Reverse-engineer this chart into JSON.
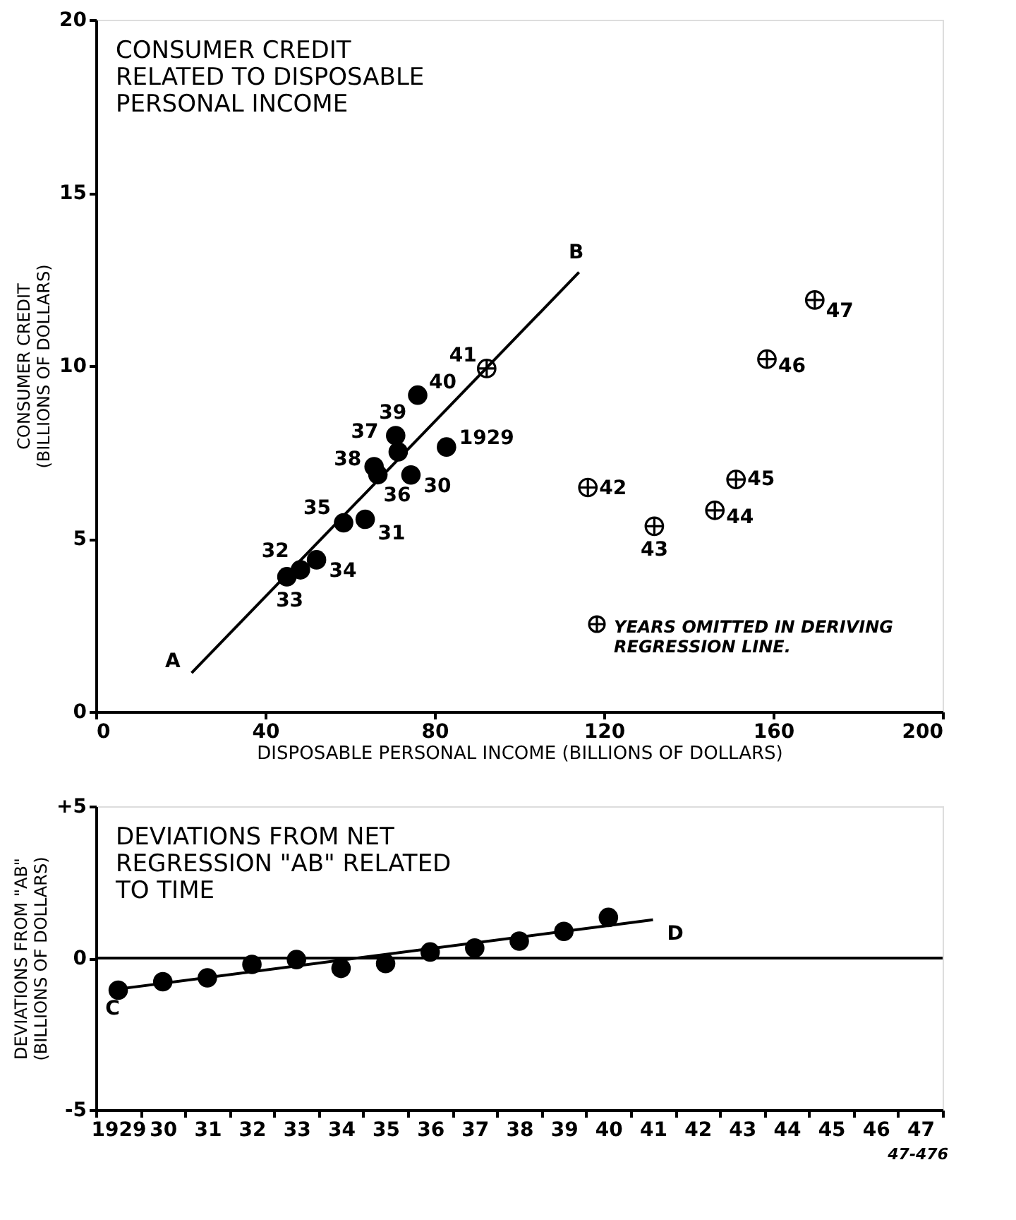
{
  "chart_data": [
    {
      "type": "scatter",
      "title": "CONSUMER CREDIT\nRELATED TO DISPOSABLE\nPERSONAL INCOME",
      "xlabel": "DISPOSABLE PERSONAL INCOME (BILLIONS OF DOLLARS)",
      "ylabel": "CONSUMER CREDIT (BILLIONS OF DOLLARS)",
      "xlim": [
        0,
        200
      ],
      "xticks": [
        0,
        40,
        80,
        120,
        160,
        200
      ],
      "ylim": [
        0,
        20
      ],
      "yticks": [
        0,
        5,
        10,
        15,
        20
      ],
      "grid": false,
      "legend": "bottom right",
      "series": [
        {
          "marker": "circle",
          "color": "#000000",
          "x": [
            82.8,
            74.4,
            63.6,
            48.3,
            45.1,
            52.1,
            58.5,
            66.6,
            71.4,
            65.7,
            70.8,
            76.0
          ],
          "values": [
            7.65,
            6.84,
            5.56,
            4.1,
            3.9,
            4.39,
            5.46,
            6.85,
            7.51,
            7.08,
            7.98,
            9.15
          ]
        },
        {
          "name": "YEARS OMITTED IN DERIVING REGRESSION LINE.",
          "marker": "cross",
          "color": "#000000",
          "x": [
            92.3,
            116.2,
            131.9,
            146.2,
            151.2,
            158.5,
            169.8
          ],
          "values": [
            9.92,
            6.48,
            5.36,
            5.82,
            6.71,
            10.19,
            11.9
          ]
        },
        {
          "type": "line",
          "color": "#000000",
          "x": [
            22.6,
            114.1
          ],
          "values": [
            1.12,
            12.7
          ]
        }
      ],
      "annotations": [
        {
          "text": "1929",
          "x": 82.8,
          "y": 7.65
        },
        {
          "text": "30",
          "x": 74.4,
          "y": 6.84
        },
        {
          "text": "31",
          "x": 63.6,
          "y": 5.56
        },
        {
          "text": "32",
          "x": 48.3,
          "y": 4.1
        },
        {
          "text": "33",
          "x": 45.1,
          "y": 3.9
        },
        {
          "text": "34",
          "x": 52.1,
          "y": 4.39
        },
        {
          "text": "35",
          "x": 58.5,
          "y": 5.46
        },
        {
          "text": "36",
          "x": 66.6,
          "y": 6.85
        },
        {
          "text": "37",
          "x": 71.4,
          "y": 7.51
        },
        {
          "text": "38",
          "x": 65.7,
          "y": 7.08
        },
        {
          "text": "39",
          "x": 70.8,
          "y": 7.98
        },
        {
          "text": "40",
          "x": 76.0,
          "y": 9.15
        },
        {
          "text": "41",
          "x": 92.3,
          "y": 9.92
        },
        {
          "text": "42",
          "x": 116.2,
          "y": 6.48
        },
        {
          "text": "43",
          "x": 131.9,
          "y": 5.36
        },
        {
          "text": "44",
          "x": 146.2,
          "y": 5.82
        },
        {
          "text": "45",
          "x": 151.2,
          "y": 6.71
        },
        {
          "text": "46",
          "x": 158.5,
          "y": 10.19
        },
        {
          "text": "47",
          "x": 169.8,
          "y": 11.9
        },
        {
          "text": "A",
          "x": 22.6,
          "y": 1.12
        },
        {
          "text": "B",
          "x": 114.1,
          "y": 12.7
        }
      ]
    },
    {
      "type": "scatter",
      "title": "DEVIATIONS FROM NET\nREGRESSION \"AB\" RELATED\nTO TIME",
      "ylabel": "DEVIATIONS FROM \"AB\" (BILLIONS OF DOLLARS)",
      "categories": [
        "1929",
        "30",
        "31",
        "32",
        "33",
        "34",
        "35",
        "36",
        "37",
        "38",
        "39",
        "40",
        "41",
        "42",
        "43",
        "44",
        "45",
        "46",
        "47"
      ],
      "ylim": [
        -5,
        5
      ],
      "yticks": [
        {
          "value": 5,
          "label": "+5"
        },
        0,
        -5
      ],
      "grid": false,
      "ref_lines": [
        {
          "axis": "y",
          "value": 0
        }
      ],
      "series": [
        {
          "marker": "circle",
          "color": "#000000",
          "values": [
            -1.06,
            -0.78,
            -0.65,
            -0.21,
            -0.05,
            -0.34,
            -0.18,
            0.2,
            0.33,
            0.56,
            0.88,
            1.34,
            null,
            null,
            null,
            null,
            null,
            null,
            null
          ]
        },
        {
          "type": "line",
          "color": "#000000",
          "values": [
            -1.02,
            null,
            null,
            null,
            null,
            null,
            null,
            null,
            null,
            null,
            null,
            null,
            1.26,
            null,
            null,
            null,
            null,
            null,
            null
          ]
        }
      ],
      "annotations": [
        {
          "text": "C",
          "x": "1929",
          "y": -1.02
        },
        {
          "text": "D",
          "x": "41",
          "y": 1.26
        },
        "47-476"
      ]
    }
  ]
}
